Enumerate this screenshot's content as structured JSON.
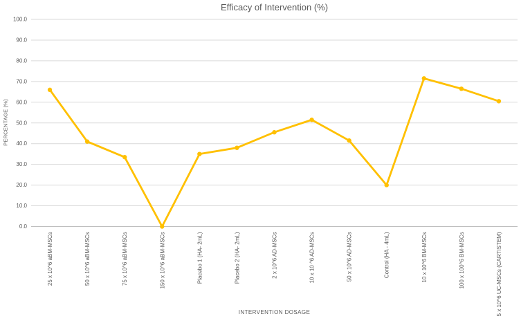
{
  "chart_data": {
    "type": "line",
    "title": "Efficacy of Intervention (%)",
    "xlabel": "INTERVENTION DOSAGE",
    "ylabel": "PERCENTAGE (%)",
    "categories": [
      "25 x 10^6 aBM-MSCs",
      "50 x 10^6 aBM-MSCs",
      "75 x 10^6 aBM-MSCs",
      "150 x 10^6 aBM-MSCs",
      "Placebo 1 (HA- 2mL)",
      "Placebo 2 (HA- 2mL)",
      "2 x 10^6 AD-MSCs",
      "10 x 10 ^6 AD-MSCs",
      "50 x 10^6 AD-MSCs",
      "Control (HA - 4mL)",
      "10 x 10^6 BM-MSCs",
      "100 x 100^6 BM-MSCs",
      "5 x 10^6 UC-MSCs (CARTISTEM)"
    ],
    "values": [
      66,
      41,
      33.5,
      0,
      35,
      38,
      45.5,
      51.5,
      41.5,
      20,
      71.5,
      66.5,
      60.5
    ],
    "ylim": [
      0,
      100
    ],
    "ytick_values": [
      0,
      10,
      20,
      30,
      40,
      50,
      60,
      70,
      80,
      90,
      100
    ],
    "ytick_labels": [
      "0.0",
      "10.0",
      "20.0",
      "30.0",
      "40.0",
      "50.0",
      "60.0",
      "70.0",
      "80.0",
      "90.0",
      "100.0"
    ],
    "grid": "horizontal",
    "legend": "none",
    "line_color": "#FFC000",
    "marker": "circle"
  },
  "colors": {
    "background": "#FFFFFF",
    "title_text": "#595959",
    "axis_text": "#595959",
    "gridline": "#D9D9D9",
    "axis_line": "#BFBFBF"
  }
}
